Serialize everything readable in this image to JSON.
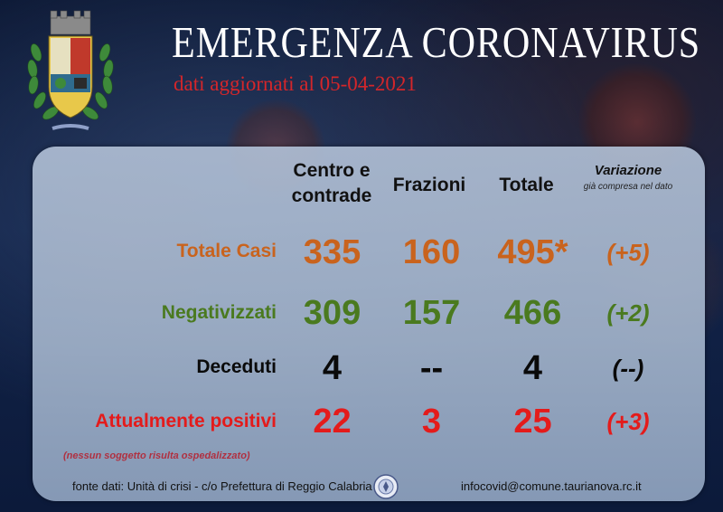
{
  "header": {
    "title": "EMERGENZA CORONAVIRUS",
    "subtitle": "dati aggiornati al 05-04-2021"
  },
  "table": {
    "columns": {
      "centro": "Centro e contrade",
      "frazioni": "Frazioni",
      "totale": "Totale",
      "variazione": "Variazione",
      "variazione_note": "già compresa nel dato"
    },
    "rows": [
      {
        "label": "Totale Casi",
        "centro": "335",
        "frazioni": "160",
        "totale": "495*",
        "variazione": "(+5)",
        "color": "#c9631d"
      },
      {
        "label": "Negativizzati",
        "centro": "309",
        "frazioni": "157",
        "totale": "466",
        "variazione": "(+2)",
        "color": "#4a7a1f"
      },
      {
        "label": "Deceduti",
        "centro": "4",
        "frazioni": "--",
        "totale": "4",
        "variazione": "(--)",
        "color": "#0a0a0a"
      },
      {
        "label": "Attualmente positivi",
        "centro": "22",
        "frazioni": "3",
        "totale": "25",
        "variazione": "(+3)",
        "color": "#e41b1b"
      }
    ],
    "note": "(nessun soggetto risulta ospedalizzato)"
  },
  "footer": {
    "source": "fonte dati: Unità di crisi - c/o Prefettura di Reggio Calabria",
    "email": "infocovid@comune.taurianova.rc.it"
  },
  "icons": {
    "crest": "municipal-crest-icon",
    "seal": "prefettura-seal-icon"
  }
}
